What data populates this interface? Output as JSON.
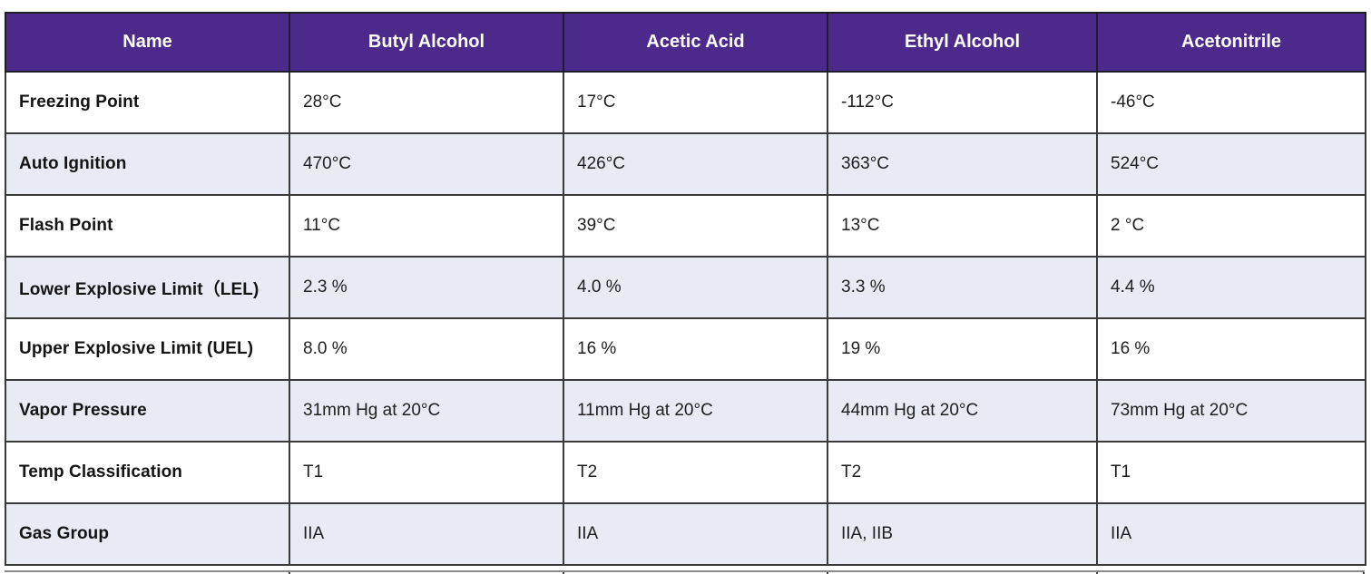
{
  "chart_data": {
    "type": "table",
    "columns": [
      "Name",
      "Butyl Alcohol",
      "Acetic Acid",
      "Ethyl Alcohol",
      "Acetonitrile"
    ],
    "rows": [
      {
        "label": "Freezing Point",
        "values": [
          "28°C",
          "17°C",
          "-112°C",
          "-46°C"
        ]
      },
      {
        "label": "Auto Ignition",
        "values": [
          "470°C",
          "426°C",
          "363°C",
          "524°C"
        ]
      },
      {
        "label": "Flash Point",
        "values": [
          "11°C",
          "39°C",
          "13°C",
          "2 °C"
        ]
      },
      {
        "label": "Lower Explosive Limit（LEL)",
        "values": [
          "2.3 %",
          "4.0 %",
          "3.3 %",
          "4.4 %"
        ]
      },
      {
        "label": "Upper Explosive Limit (UEL)",
        "values": [
          "8.0 %",
          "16 %",
          "19 %",
          "16 %"
        ]
      },
      {
        "label": "Vapor Pressure",
        "values": [
          "31mm Hg at 20°C",
          "11mm Hg at 20°C",
          "44mm Hg at 20°C",
          "73mm Hg at 20°C"
        ]
      },
      {
        "label": "Temp Classification",
        "values": [
          "T1",
          "T2",
          "T2",
          "T1"
        ]
      },
      {
        "label": "Gas Group",
        "values": [
          "IIA",
          "IIA",
          "IIA, IIB",
          "IIA"
        ]
      }
    ],
    "layout_hints": {
      "header_row": true,
      "alternating_rows": "odd rows white, even rows lavender",
      "grid": true
    }
  },
  "colors": {
    "header_bg": "#4C2A8C",
    "header_text": "#FFFFFF",
    "row_bg": "#FFFFFF",
    "row_alt_bg": "#E9EBF4",
    "border": "#3A3A3A",
    "text": "#1E1E1E"
  }
}
